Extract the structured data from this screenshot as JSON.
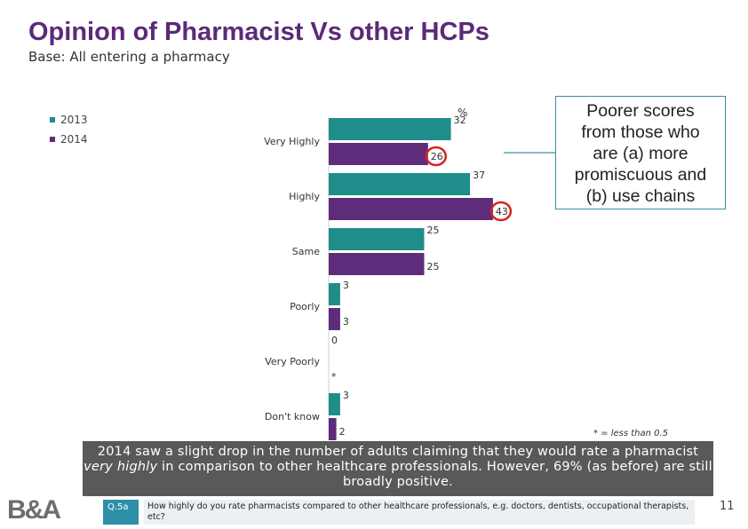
{
  "page": {
    "title": "Opinion of Pharmacist Vs other HCPs",
    "subtitle": "Base: All entering a pharmacy"
  },
  "colors": {
    "s2013": "#1f8e8a",
    "s2014": "#5f2b7b",
    "highlight": "#d9211f"
  },
  "chart_data": {
    "type": "bar",
    "orientation": "horizontal",
    "unit_label": "%",
    "categories": [
      "Very Highly",
      "Highly",
      "Same",
      "Poorly",
      "Very Poorly",
      "Don't know"
    ],
    "series": [
      {
        "name": "2013",
        "values": [
          32,
          37,
          25,
          3,
          0,
          3
        ],
        "labels": [
          "32",
          "37",
          "25",
          "3",
          "0",
          "3"
        ],
        "color": "#1f8e8a"
      },
      {
        "name": "2014",
        "values": [
          26,
          43,
          25,
          3,
          0,
          2
        ],
        "labels": [
          "26",
          "43",
          "25",
          "3",
          "*",
          "2"
        ],
        "color": "#5f2b7b"
      }
    ],
    "circled": [
      {
        "series": "2014",
        "category": "Very Highly"
      },
      {
        "series": "2014",
        "category": "Highly"
      }
    ]
  },
  "callout": {
    "lines": [
      "Poorer scores",
      "from those who",
      "are (a) more",
      "promiscuous and",
      "(b) use chains"
    ]
  },
  "footnote": "* = less than 0.5",
  "summary": {
    "part1": "2014 saw a slight drop in the number of adults claiming that they would rate a pharmacist ",
    "italic": "very highly",
    "part2": " in comparison to other healthcare professionals. However, 69% (as before) are still broadly positive."
  },
  "question": {
    "code": "Q.5a",
    "text": "How highly do you rate pharmacists compared to other healthcare professionals, e.g. doctors, dentists, occupational therapists, etc?"
  },
  "logo_text": "B&A",
  "page_number": "11"
}
